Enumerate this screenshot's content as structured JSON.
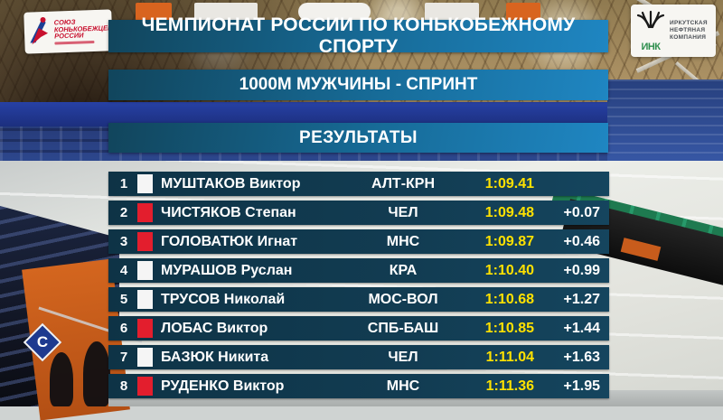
{
  "header": {
    "title": "ЧЕМПИОНАТ РОССИИ ПО КОНЬКОБЕЖНОМУ СПОРТУ"
  },
  "event": {
    "title": "1000М МУЖЧИНЫ - СПРИНТ"
  },
  "section": {
    "title": "РЕЗУЛЬТАТЫ"
  },
  "branding": {
    "skating_union": {
      "name_lines": [
        "СОЮЗ",
        "КОНЬКОБЕЖЦЕВ",
        "РОССИИ"
      ]
    },
    "sponsor": {
      "monogram": "ИНК",
      "name_lines": [
        "ИРКУТСКАЯ",
        "НЕФТЯНАЯ",
        "КОМПАНИЯ"
      ]
    }
  },
  "arena": {
    "sector_label": "C"
  },
  "results": {
    "rows": [
      {
        "rank": "1",
        "lane": "white",
        "name": "МУШТАКОВ Виктор",
        "region": "АЛТ-КРН",
        "time": "1:09.41",
        "gap": ""
      },
      {
        "rank": "2",
        "lane": "red",
        "name": "ЧИСТЯКОВ Степан",
        "region": "ЧЕЛ",
        "time": "1:09.48",
        "gap": "+0.07"
      },
      {
        "rank": "3",
        "lane": "red",
        "name": "ГОЛОВАТЮК Игнат",
        "region": "МНС",
        "time": "1:09.87",
        "gap": "+0.46"
      },
      {
        "rank": "4",
        "lane": "white",
        "name": "МУРАШОВ Руслан",
        "region": "КРА",
        "time": "1:10.40",
        "gap": "+0.99"
      },
      {
        "rank": "5",
        "lane": "white",
        "name": "ТРУСОВ Николай",
        "region": "МОС-ВОЛ",
        "time": "1:10.68",
        "gap": "+1.27"
      },
      {
        "rank": "6",
        "lane": "red",
        "name": "ЛОБАС Виктор",
        "region": "СПБ-БАШ",
        "time": "1:10.85",
        "gap": "+1.44"
      },
      {
        "rank": "7",
        "lane": "white",
        "name": "БАЗЮК Никита",
        "region": "ЧЕЛ",
        "time": "1:11.04",
        "gap": "+1.63"
      },
      {
        "rank": "8",
        "lane": "red",
        "name": "РУДЕНКО Виктор",
        "region": "МНС",
        "time": "1:11.36",
        "gap": "+1.95"
      }
    ]
  },
  "colors": {
    "banner_dark": "#11455c",
    "banner_light": "#1f86c2",
    "row_bg": "#123c52",
    "time_yellow": "#ffe100",
    "lane_red": "#e31e2d",
    "lane_white": "#f5f5f5"
  }
}
